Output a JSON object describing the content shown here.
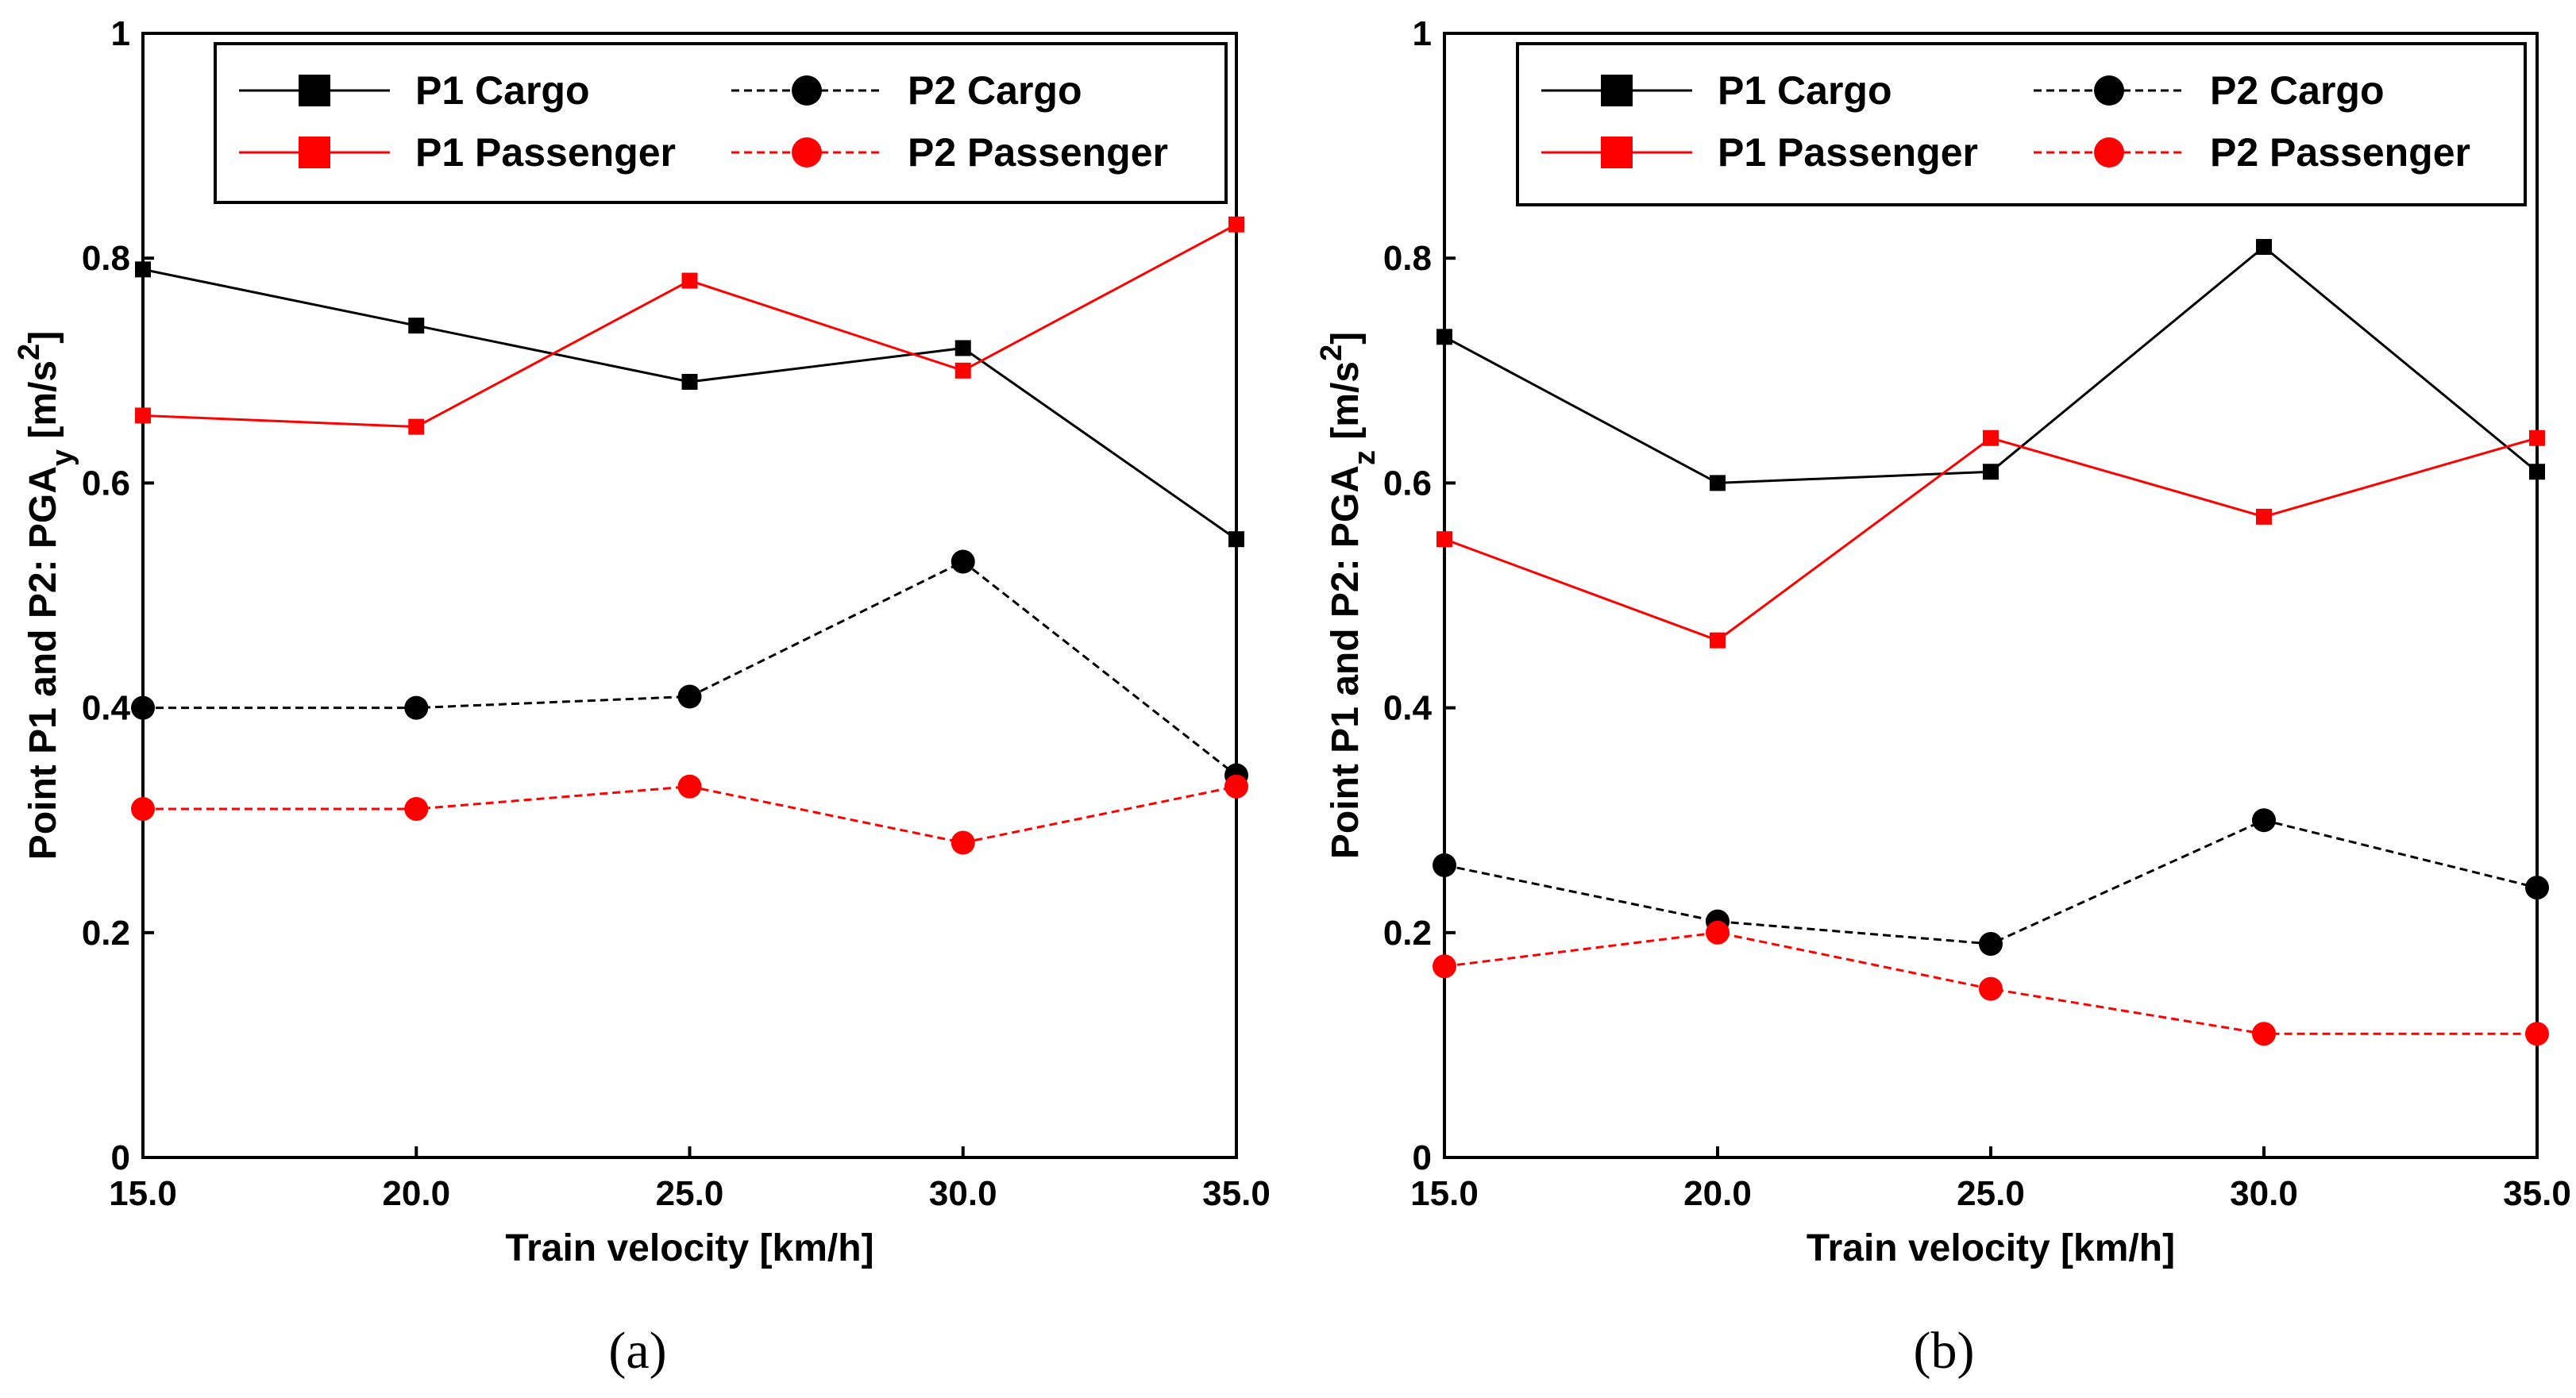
{
  "chart_data": [
    {
      "type": "line",
      "panel": "a",
      "caption": "(a)",
      "x": [
        15.0,
        20.0,
        25.0,
        30.0,
        35.0
      ],
      "xticks": [
        "15.0",
        "20.0",
        "25.0",
        "30.0",
        "35.0"
      ],
      "yticks": [
        "0",
        "0.2",
        "0.4",
        "0.6",
        "0.8",
        "1"
      ],
      "xlim": [
        15,
        35
      ],
      "ylim": [
        0,
        1
      ],
      "xlabel": "Train velocity [km/h]",
      "ylabel": "Point P1 and P2: PGAy [m/s2]",
      "ylabel_main": "Point P1 and P2: PGA",
      "ylabel_sub": "y",
      "ylabel_unit": " [m/s",
      "ylabel_sup": "2",
      "ylabel_close": "]",
      "legend_position": "top",
      "series": [
        {
          "name": "P1 Cargo",
          "color": "#000000",
          "marker": "square",
          "dash": "solid",
          "values": [
            0.79,
            0.74,
            0.69,
            0.72,
            0.55
          ]
        },
        {
          "name": "P2 Cargo",
          "color": "#000000",
          "marker": "circle",
          "dash": "dashed",
          "values": [
            0.4,
            0.4,
            0.41,
            0.53,
            0.34
          ]
        },
        {
          "name": "P1 Passenger",
          "color": "#ff0000",
          "marker": "square",
          "dash": "solid",
          "values": [
            0.66,
            0.65,
            0.78,
            0.7,
            0.83
          ]
        },
        {
          "name": "P2 Passenger",
          "color": "#ff0000",
          "marker": "circle",
          "dash": "dashed",
          "values": [
            0.31,
            0.31,
            0.33,
            0.28,
            0.33
          ]
        }
      ]
    },
    {
      "type": "line",
      "panel": "b",
      "caption": "(b)",
      "x": [
        15.0,
        20.0,
        25.0,
        30.0,
        35.0
      ],
      "xticks": [
        "15.0",
        "20.0",
        "25.0",
        "30.0",
        "35.0"
      ],
      "yticks": [
        "0",
        "0.2",
        "0.4",
        "0.6",
        "0.8",
        "1"
      ],
      "xlim": [
        15,
        35
      ],
      "ylim": [
        0,
        1
      ],
      "xlabel": "Train velocity [km/h]",
      "ylabel": "Point P1 and P2: PGAz [m/s2]",
      "ylabel_main": "Point P1 and P2: PGA",
      "ylabel_sub": "z",
      "ylabel_unit": " [m/s",
      "ylabel_sup": "2",
      "ylabel_close": "]",
      "legend_position": "top",
      "series": [
        {
          "name": "P1 Cargo",
          "color": "#000000",
          "marker": "square",
          "dash": "solid",
          "values": [
            0.73,
            0.6,
            0.61,
            0.81,
            0.61
          ]
        },
        {
          "name": "P2 Cargo",
          "color": "#000000",
          "marker": "circle",
          "dash": "dashed",
          "values": [
            0.26,
            0.21,
            0.19,
            0.3,
            0.24
          ]
        },
        {
          "name": "P1 Passenger",
          "color": "#ff0000",
          "marker": "square",
          "dash": "solid",
          "values": [
            0.55,
            0.46,
            0.64,
            0.57,
            0.64
          ]
        },
        {
          "name": "P2 Passenger",
          "color": "#ff0000",
          "marker": "circle",
          "dash": "dashed",
          "values": [
            0.17,
            0.2,
            0.15,
            0.11,
            0.11
          ]
        }
      ]
    }
  ]
}
